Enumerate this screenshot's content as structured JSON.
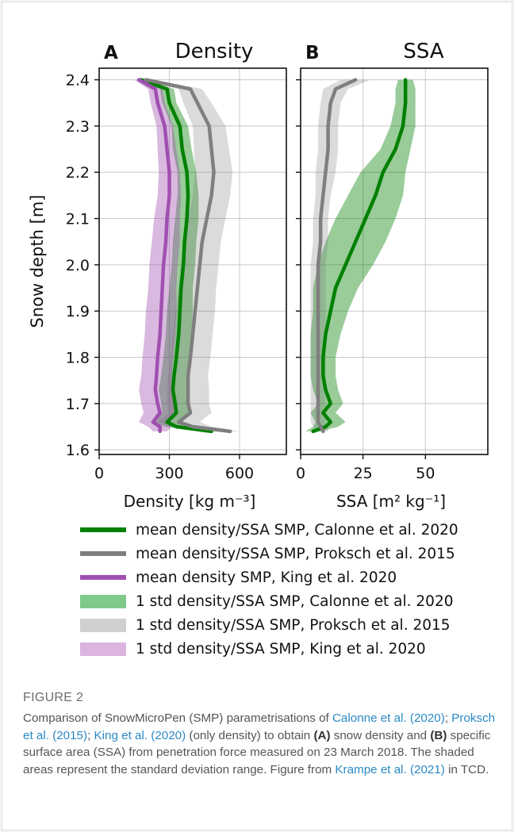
{
  "chart_data": [
    {
      "type": "line",
      "panel_letter": "A",
      "title": "Density",
      "xlabel": "Density [kg m⁻³]",
      "ylabel": "Snow depth [m]",
      "xlim": [
        0,
        800
      ],
      "ylim": [
        1.59,
        2.425
      ],
      "xticks": [
        0,
        300,
        600
      ],
      "yticks": [
        1.6,
        1.7,
        1.8,
        1.9,
        2.0,
        2.1,
        2.2,
        2.3,
        2.4
      ],
      "grid": true,
      "depth": [
        1.64,
        1.65,
        1.66,
        1.68,
        1.7,
        1.73,
        1.76,
        1.8,
        1.85,
        1.9,
        1.95,
        2.0,
        2.05,
        2.1,
        2.15,
        2.2,
        2.25,
        2.3,
        2.35,
        2.38,
        2.4
      ],
      "series": [
        {
          "name": "mean density/SSA SMP, Calonne et al. 2020",
          "color": "#008000",
          "values": [
            480,
            330,
            290,
            330,
            325,
            315,
            320,
            330,
            340,
            345,
            350,
            360,
            365,
            375,
            380,
            375,
            355,
            345,
            300,
            290,
            180
          ],
          "std": [
            30,
            50,
            60,
            60,
            60,
            60,
            55,
            55,
            55,
            55,
            50,
            50,
            50,
            50,
            45,
            40,
            40,
            35,
            30,
            30,
            20
          ]
        },
        {
          "name": "mean density/SSA SMP, Proksch et al. 2015",
          "color": "#7f7f7f",
          "values": [
            560,
            400,
            340,
            390,
            380,
            380,
            380,
            390,
            400,
            410,
            420,
            430,
            440,
            460,
            480,
            490,
            480,
            470,
            420,
            390,
            200
          ],
          "std": [
            40,
            80,
            90,
            90,
            90,
            90,
            85,
            85,
            85,
            85,
            80,
            80,
            80,
            80,
            80,
            80,
            75,
            70,
            60,
            50,
            30
          ]
        },
        {
          "name": "mean density SMP, King et al. 2020",
          "color": "#a050b0",
          "values": [
            260,
            260,
            230,
            260,
            250,
            240,
            245,
            250,
            260,
            265,
            270,
            275,
            285,
            290,
            300,
            300,
            290,
            280,
            250,
            240,
            170
          ],
          "std": [
            30,
            50,
            60,
            70,
            70,
            70,
            65,
            65,
            65,
            65,
            60,
            60,
            60,
            55,
            50,
            45,
            40,
            35,
            30,
            30,
            20
          ]
        }
      ]
    },
    {
      "type": "line",
      "panel_letter": "B",
      "title": "SSA",
      "xlabel": "SSA [m² kg⁻¹]",
      "xlim": [
        0,
        75
      ],
      "ylim": [
        1.59,
        2.425
      ],
      "xticks": [
        0,
        25,
        50
      ],
      "yticks": [
        1.6,
        1.7,
        1.8,
        1.9,
        2.0,
        2.1,
        2.2,
        2.3,
        2.4
      ],
      "grid": true,
      "depth": [
        1.64,
        1.65,
        1.66,
        1.68,
        1.7,
        1.73,
        1.76,
        1.8,
        1.85,
        1.9,
        1.95,
        2.0,
        2.05,
        2.1,
        2.15,
        2.2,
        2.25,
        2.3,
        2.35,
        2.38,
        2.4
      ],
      "series": [
        {
          "name": "mean density/SSA SMP, Calonne et al. 2020",
          "color": "#008000",
          "values": [
            5,
            10,
            12,
            9,
            12,
            10,
            9,
            9,
            10,
            12,
            14,
            18,
            22,
            26,
            30,
            33,
            38,
            41,
            42,
            42,
            42
          ],
          "std": [
            3,
            5,
            6,
            5,
            5,
            5,
            5,
            5,
            6,
            7,
            9,
            11,
            12,
            12,
            11,
            9,
            6,
            5,
            4,
            4,
            3
          ]
        },
        {
          "name": "mean density/SSA SMP, Proksch et al. 2015",
          "color": "#7f7f7f",
          "values": [
            9,
            8,
            7,
            7,
            7,
            7,
            7,
            7,
            7,
            7,
            7,
            7,
            8,
            8,
            9,
            10,
            11,
            11,
            12,
            14,
            22
          ],
          "std": [
            2,
            3,
            3,
            3,
            3,
            3,
            3,
            3,
            3,
            3,
            3,
            3,
            3,
            3,
            3,
            4,
            4,
            4,
            4,
            5,
            6
          ]
        }
      ]
    }
  ],
  "legend": [
    {
      "label": "mean density/SSA SMP, Calonne et al. 2020",
      "color": "#008000",
      "kind": "mean"
    },
    {
      "label": "mean density/SSA SMP, Proksch et al. 2015",
      "color": "#7f7f7f",
      "kind": "mean"
    },
    {
      "label": "mean density SMP, King et al. 2020",
      "color": "#a050b0",
      "kind": "mean"
    },
    {
      "label": "1 std density/SSA SMP, Calonne et al. 2020",
      "color": "#7fc98a",
      "kind": "std"
    },
    {
      "label": "1 std density/SSA SMP, Proksch et al. 2015",
      "color": "#d0d0d0",
      "kind": "std"
    },
    {
      "label": "1 std density/SSA SMP, King et al. 2020",
      "color": "#dcb4e0",
      "kind": "std"
    }
  ],
  "caption": {
    "figure_label": "FIGURE 2",
    "t1": "Comparison of SnowMicroPen (SMP) parametrisations of ",
    "ref1": "Calonne et al. (2020)",
    "t2": "; ",
    "ref2": "Proksch et al. (2015)",
    "t3": "; ",
    "ref3": "King et al. (2020)",
    "t4": " (only density) to obtain ",
    "bold_a": "(A)",
    "t5": " snow density and ",
    "bold_b": "(B)",
    "t6": " specific surface area (SSA) from penetration force measured on 23 March 2018. The shaded areas represent the standard deviation range. Figure from ",
    "ref4": "Krampe et al. (2021)",
    "t7": " in TCD."
  }
}
